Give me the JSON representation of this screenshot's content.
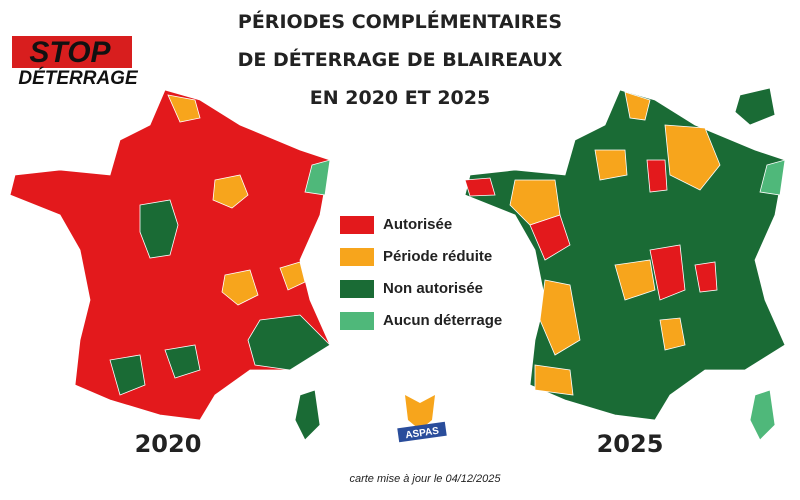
{
  "logo": {
    "line1": "STOP",
    "line2": "DÉTERRAGE"
  },
  "title": [
    "PÉRIODES COMPLÉMENTAIRES",
    "DE DÉTERRAGE DE BLAIREAUX",
    "EN 2020 ET 2025"
  ],
  "legend": [
    {
      "label": "Autorisée",
      "color": "#e3191c"
    },
    {
      "label": "Période réduite",
      "color": "#f7a51c"
    },
    {
      "label": "Non autorisée",
      "color": "#1a6b35"
    },
    {
      "label": "Aucun déterrage",
      "color": "#4fb87a"
    }
  ],
  "maps": [
    {
      "year": "2020"
    },
    {
      "year": "2025"
    }
  ],
  "partner": "ASPAS",
  "footer": "carte mise à jour le 04/12/2025"
}
